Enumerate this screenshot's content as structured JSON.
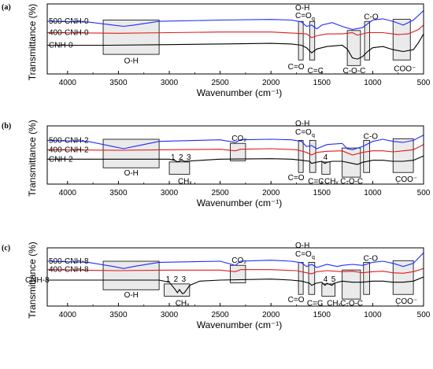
{
  "colors": {
    "500": "#1f2bff",
    "400": "#e31a1c",
    "0": "#000000",
    "box": "#d9d9d9"
  },
  "chart_data": [
    {
      "type": "line",
      "panel_label": "(a)",
      "xlabel": "Wavenumber (cm⁻¹)",
      "ylabel": "Transmittance (%)",
      "xlim": [
        4200,
        500
      ],
      "x_ticks": [
        "4000",
        "3500",
        "3000",
        "2500",
        "2000",
        "1500",
        "1000",
        "500"
      ],
      "series": [
        {
          "name": "500-CNH-0",
          "color_key": "500",
          "x": [
            4200,
            3800,
            3550,
            3450,
            3350,
            3100,
            2500,
            2000,
            1800,
            1700,
            1650,
            1600,
            1550,
            1500,
            1400,
            1300,
            1200,
            1100,
            1050,
            1000,
            900,
            800,
            700,
            600,
            500
          ],
          "y": [
            0.78,
            0.77,
            0.72,
            0.7,
            0.72,
            0.78,
            0.8,
            0.81,
            0.8,
            0.77,
            0.7,
            0.72,
            0.66,
            0.72,
            0.76,
            0.7,
            0.65,
            0.68,
            0.74,
            0.8,
            0.82,
            0.78,
            0.72,
            0.8,
            0.95
          ]
        },
        {
          "name": "400-CNH-0",
          "color_key": "400",
          "x": [
            4200,
            3500,
            3000,
            2500,
            2000,
            1750,
            1650,
            1600,
            1550,
            1450,
            1300,
            1200,
            1150,
            1050,
            900,
            750,
            650,
            550,
            500
          ],
          "y": [
            0.6,
            0.59,
            0.6,
            0.61,
            0.61,
            0.59,
            0.58,
            0.52,
            0.55,
            0.58,
            0.58,
            0.6,
            0.56,
            0.6,
            0.6,
            0.57,
            0.58,
            0.65,
            0.72
          ]
        },
        {
          "name": "CNH-0",
          "color_key": "0",
          "x": [
            4200,
            3600,
            3000,
            2500,
            2000,
            1800,
            1700,
            1650,
            1600,
            1550,
            1450,
            1300,
            1250,
            1200,
            1150,
            1100,
            1050,
            1000,
            900,
            800,
            700,
            600,
            550,
            500
          ],
          "y": [
            0.4,
            0.4,
            0.41,
            0.42,
            0.43,
            0.42,
            0.4,
            0.36,
            0.28,
            0.34,
            0.38,
            0.4,
            0.34,
            0.2,
            0.18,
            0.22,
            0.3,
            0.36,
            0.38,
            0.33,
            0.3,
            0.33,
            0.44,
            0.58
          ]
        }
      ],
      "annotations": [
        {
          "text": "O-H",
          "region": [
            3650,
            3100
          ]
        },
        {
          "text": "C=O",
          "region": [
            1730,
            1690
          ]
        },
        {
          "text": "C=C",
          "region": [
            1620,
            1570
          ]
        },
        {
          "text": "C-O-C",
          "region": [
            1250,
            1120
          ]
        },
        {
          "text": "C-O",
          "region": [
            1080,
            1030
          ]
        },
        {
          "text": "COO⁻",
          "region": [
            800,
            630
          ]
        }
      ],
      "labels": {
        "oh_top": "O-H",
        "cooq": "C=O",
        "cooq_sub": "q"
      }
    },
    {
      "type": "line",
      "panel_label": "(b)",
      "xlabel": "Wavenumber (cm⁻¹)",
      "ylabel": "Transmittance (%)",
      "xlim": [
        4200,
        500
      ],
      "x_ticks": [
        "4000",
        "3500",
        "3000",
        "2500",
        "2000",
        "1500",
        "1000",
        "500"
      ],
      "series": [
        {
          "name": "500-CNH-2",
          "color_key": "500",
          "x": [
            4200,
            3800,
            3550,
            3450,
            3350,
            3100,
            2500,
            2350,
            2300,
            2000,
            1800,
            1700,
            1650,
            1600,
            1550,
            1450,
            1300,
            1250,
            1200,
            1100,
            1000,
            900,
            800,
            700,
            600,
            500
          ],
          "y": [
            0.78,
            0.76,
            0.66,
            0.62,
            0.66,
            0.76,
            0.79,
            0.74,
            0.79,
            0.8,
            0.79,
            0.76,
            0.66,
            0.68,
            0.62,
            0.7,
            0.72,
            0.62,
            0.6,
            0.66,
            0.76,
            0.8,
            0.76,
            0.74,
            0.78,
            0.88
          ]
        },
        {
          "name": "400-CNH-2",
          "color_key": "400",
          "x": [
            4200,
            3500,
            3000,
            2500,
            2350,
            2300,
            2000,
            1750,
            1650,
            1600,
            1550,
            1450,
            1300,
            1200,
            1100,
            1000,
            900,
            800,
            700,
            600,
            500
          ],
          "y": [
            0.6,
            0.59,
            0.6,
            0.61,
            0.58,
            0.61,
            0.62,
            0.6,
            0.55,
            0.5,
            0.55,
            0.57,
            0.58,
            0.5,
            0.55,
            0.58,
            0.58,
            0.56,
            0.58,
            0.6,
            0.7
          ]
        },
        {
          "name": "CNH-2",
          "color_key": "0",
          "x": [
            4200,
            3600,
            3000,
            2950,
            2920,
            2880,
            2850,
            2500,
            2000,
            1800,
            1700,
            1620,
            1600,
            1560,
            1500,
            1470,
            1450,
            1400,
            1300,
            1200,
            1150,
            1100,
            1000,
            900,
            800,
            700,
            600,
            500
          ],
          "y": [
            0.42,
            0.42,
            0.42,
            0.4,
            0.37,
            0.4,
            0.38,
            0.42,
            0.43,
            0.42,
            0.4,
            0.38,
            0.34,
            0.36,
            0.38,
            0.34,
            0.36,
            0.38,
            0.38,
            0.34,
            0.32,
            0.36,
            0.4,
            0.4,
            0.38,
            0.38,
            0.4,
            0.48
          ]
        }
      ],
      "annotations": [
        {
          "text": "O-H",
          "region": [
            3650,
            3100
          ]
        },
        {
          "text": "CHₓ",
          "region": [
            3000,
            2800
          ],
          "marks": [
            "1",
            "2",
            "3"
          ]
        },
        {
          "text": "CO₂",
          "region": [
            2400,
            2250
          ]
        },
        {
          "text": "C=O",
          "region": [
            1730,
            1690
          ]
        },
        {
          "text": "C=C",
          "region": [
            1620,
            1560
          ]
        },
        {
          "text": "CHₓ",
          "region": [
            1500,
            1420
          ],
          "marks": [
            "4"
          ]
        },
        {
          "text": "C-O-C",
          "region": [
            1300,
            1120
          ]
        },
        {
          "text": "C-O",
          "region": [
            1090,
            1030
          ]
        },
        {
          "text": "COO⁻",
          "region": [
            800,
            600
          ]
        }
      ],
      "labels": {
        "oh_top": "O-H",
        "cooq": "C=O",
        "cooq_sub": "q"
      }
    },
    {
      "type": "line",
      "panel_label": "(c)",
      "xlabel": "Wavenumber (cm⁻¹)",
      "ylabel": "Transmittance (%)",
      "xlim": [
        4200,
        500
      ],
      "x_ticks": [
        "4000",
        "3500",
        "3000",
        "2500",
        "2000",
        "1500",
        "1000",
        "500"
      ],
      "series": [
        {
          "name": "500-CNH-8",
          "color_key": "500",
          "x": [
            4200,
            3800,
            3550,
            3450,
            3350,
            3100,
            2500,
            2350,
            2300,
            2000,
            1800,
            1700,
            1650,
            1600,
            1550,
            1450,
            1350,
            1300,
            1200,
            1100,
            1000,
            900,
            800,
            700,
            600,
            550,
            500
          ],
          "y": [
            0.8,
            0.78,
            0.7,
            0.66,
            0.7,
            0.78,
            0.8,
            0.72,
            0.8,
            0.82,
            0.8,
            0.77,
            0.7,
            0.74,
            0.68,
            0.74,
            0.7,
            0.72,
            0.74,
            0.72,
            0.78,
            0.8,
            0.76,
            0.7,
            0.76,
            0.86,
            0.96
          ]
        },
        {
          "name": "400-CNH-8",
          "color_key": "400",
          "x": [
            4200,
            3500,
            3000,
            2500,
            2350,
            2300,
            2000,
            1750,
            1650,
            1600,
            1550,
            1450,
            1300,
            1200,
            1100,
            1000,
            900,
            800,
            700,
            600,
            500
          ],
          "y": [
            0.64,
            0.62,
            0.63,
            0.63,
            0.6,
            0.64,
            0.64,
            0.62,
            0.58,
            0.56,
            0.6,
            0.62,
            0.6,
            0.61,
            0.58,
            0.6,
            0.61,
            0.58,
            0.57,
            0.6,
            0.66
          ]
        },
        {
          "name": "CNH-8",
          "color_key": "0",
          "x": [
            4200,
            3600,
            3100,
            3000,
            2950,
            2920,
            2900,
            2870,
            2850,
            2800,
            2700,
            2500,
            2000,
            1800,
            1700,
            1620,
            1600,
            1560,
            1500,
            1470,
            1450,
            1400,
            1380,
            1300,
            1200,
            1100,
            1000,
            900,
            800,
            700,
            600,
            500
          ],
          "y": [
            0.44,
            0.44,
            0.44,
            0.4,
            0.28,
            0.2,
            0.26,
            0.18,
            0.2,
            0.34,
            0.42,
            0.44,
            0.46,
            0.44,
            0.42,
            0.38,
            0.34,
            0.38,
            0.4,
            0.34,
            0.38,
            0.34,
            0.38,
            0.42,
            0.4,
            0.4,
            0.42,
            0.42,
            0.4,
            0.4,
            0.42,
            0.5
          ]
        }
      ],
      "annotations": [
        {
          "text": "O-H",
          "region": [
            3650,
            3100
          ]
        },
        {
          "text": "CHₓ",
          "region": [
            3050,
            2800
          ],
          "marks": [
            "1",
            "2",
            "3"
          ]
        },
        {
          "text": "CO₂",
          "region": [
            2400,
            2250
          ]
        },
        {
          "text": "C=O",
          "region": [
            1730,
            1690
          ]
        },
        {
          "text": "C=C",
          "region": [
            1630,
            1570
          ]
        },
        {
          "text": "CHₓ",
          "region": [
            1500,
            1370
          ],
          "marks": [
            "4",
            "5"
          ]
        },
        {
          "text": "C-O-C",
          "region": [
            1300,
            1120
          ]
        },
        {
          "text": "C-O",
          "region": [
            1090,
            1030
          ]
        },
        {
          "text": "COO⁻",
          "region": [
            800,
            600
          ]
        }
      ],
      "labels": {
        "oh_top": "O-H",
        "cooq": "C=O",
        "cooq_sub": "q"
      }
    }
  ]
}
